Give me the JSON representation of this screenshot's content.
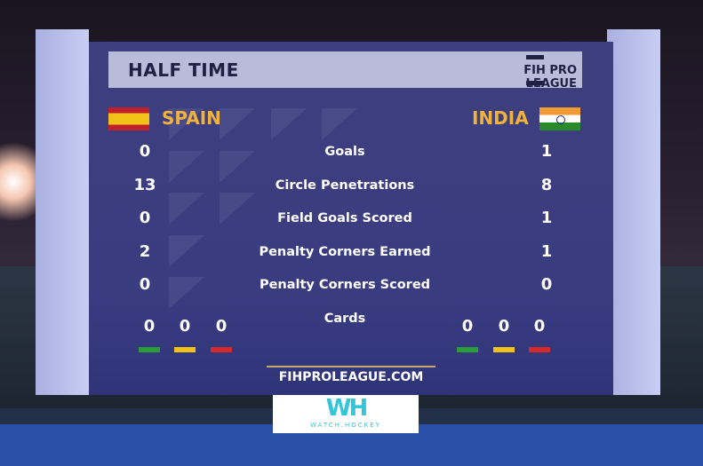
{
  "header": {
    "title": "HALF TIME",
    "logo": "FIH PRO LEAGUE"
  },
  "teams": {
    "home": {
      "name": "SPAIN",
      "flag": "spain-flag"
    },
    "away": {
      "name": "INDIA",
      "flag": "india-flag"
    }
  },
  "stats": [
    {
      "label": "Goals",
      "home": "0",
      "away": "1"
    },
    {
      "label": "Circle Penetrations",
      "home": "13",
      "away": "8"
    },
    {
      "label": "Field Goals Scored",
      "home": "0",
      "away": "1"
    },
    {
      "label": "Penalty Corners Earned",
      "home": "2",
      "away": "1"
    },
    {
      "label": "Penalty Corners Scored",
      "home": "0",
      "away": "0"
    }
  ],
  "cards": {
    "label": "Cards",
    "home": [
      "0",
      "0",
      "0"
    ],
    "away": [
      "0",
      "0",
      "0"
    ],
    "colors": [
      "#2a9d3a",
      "#f2c21a",
      "#d62828"
    ]
  },
  "footer": {
    "website": "FIHPROLEAGUE.COM"
  },
  "watermark": {
    "mark": "WH",
    "text": "WATCH.HOCKEY"
  }
}
